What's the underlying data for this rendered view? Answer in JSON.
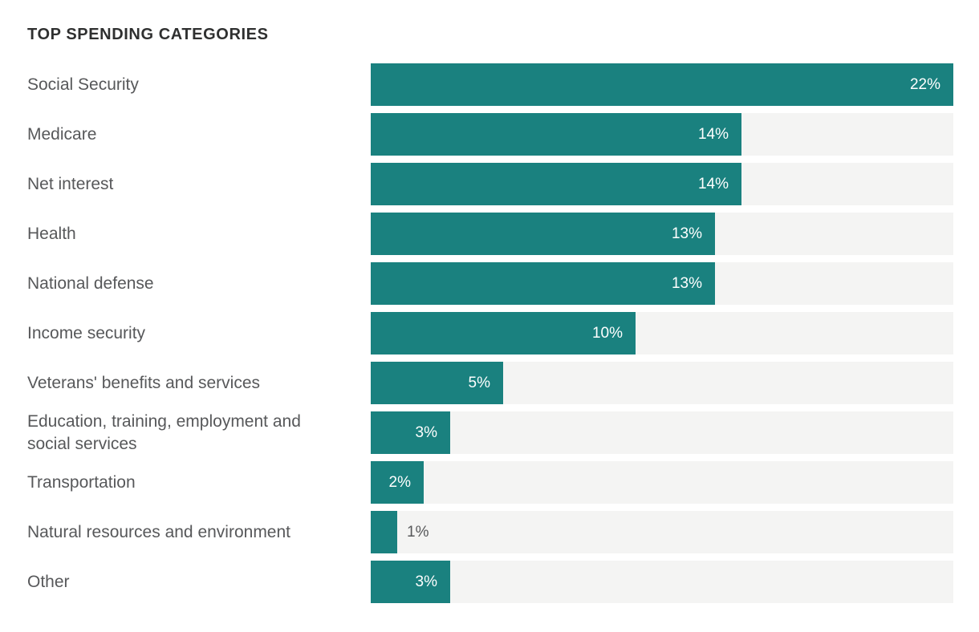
{
  "chart_data": {
    "type": "bar",
    "orientation": "horizontal",
    "title": "TOP SPENDING CATEGORIES",
    "categories": [
      "Social Security",
      "Medicare",
      "Net interest",
      "Health",
      "National defense",
      "Income security",
      "Veterans' benefits and services",
      "Education, training, employment and social services",
      "Transportation",
      "Natural resources and environment",
      "Other"
    ],
    "values": [
      22,
      14,
      14,
      13,
      13,
      10,
      5,
      3,
      2,
      1,
      3
    ],
    "value_labels": [
      "22%",
      "14%",
      "14%",
      "13%",
      "13%",
      "10%",
      "5%",
      "3%",
      "2%",
      "1%",
      "3%"
    ],
    "unit": "%",
    "xlim": [
      0,
      22
    ],
    "grid": "off",
    "legend": "none",
    "axis_ticks": "none",
    "bar_color": "#1a817f",
    "track_color": "#f4f4f3",
    "label_color": "#57585a",
    "title_color": "#2f3030",
    "inside_value_color": "#ffffff"
  }
}
